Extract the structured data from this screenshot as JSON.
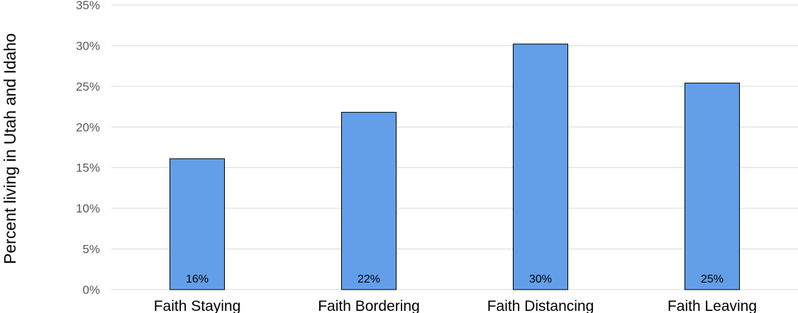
{
  "chart_data": {
    "type": "bar",
    "categories": [
      "Faith Staying",
      "Faith Bordering",
      "Faith Distancing",
      "Faith Leaving"
    ],
    "values": [
      16.1,
      21.8,
      30.2,
      25.4
    ],
    "data_labels": [
      "16%",
      "22%",
      "30%",
      "25%"
    ],
    "title": "",
    "xlabel": "",
    "ylabel": "Percent living in Utah and Idaho",
    "ylim": [
      0,
      35
    ],
    "yticks": [
      0,
      5,
      10,
      15,
      20,
      25,
      30,
      35
    ],
    "ytick_labels": [
      "0%",
      "5%",
      "10%",
      "15%",
      "20%",
      "25%",
      "30%",
      "35%"
    ],
    "grid": true,
    "legend": "none",
    "bar_color": "#629FE8"
  }
}
